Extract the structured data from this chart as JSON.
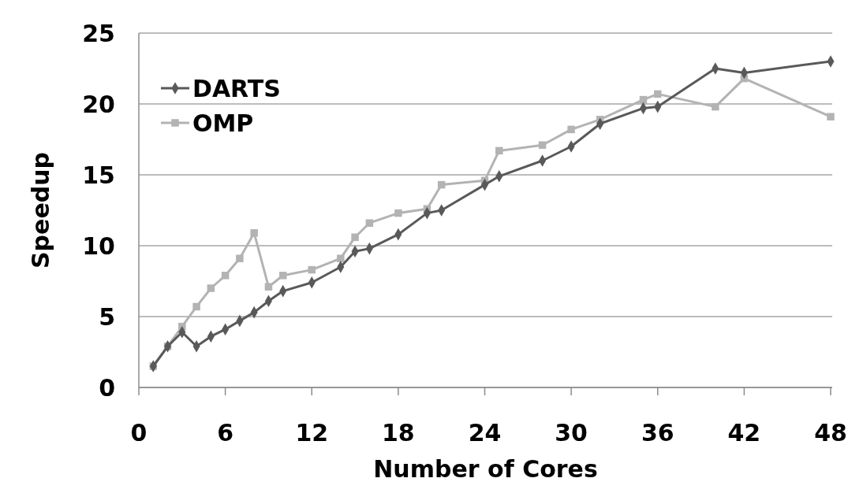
{
  "chart_data": {
    "type": "line",
    "xlabel": "Number of Cores",
    "ylabel": "Speedup",
    "xlim": [
      0,
      48
    ],
    "xticks": [
      0,
      6,
      12,
      18,
      24,
      30,
      36,
      42,
      48
    ],
    "ylim": [
      0,
      25
    ],
    "yticks": [
      0,
      5,
      10,
      15,
      20,
      25
    ],
    "grid": "y",
    "legend": "top left",
    "line_style": "solid",
    "x": [
      1,
      2,
      3,
      4,
      5,
      6,
      7,
      8,
      9,
      10,
      12,
      14,
      15,
      16,
      18,
      20,
      21,
      24,
      25,
      28,
      30,
      32,
      35,
      36,
      40,
      42,
      48
    ],
    "series": [
      {
        "name": "DARTS",
        "color": "#595959",
        "marker": "diamond",
        "values": [
          1.5,
          2.9,
          3.9,
          2.9,
          3.6,
          4.1,
          4.7,
          5.3,
          6.1,
          6.8,
          7.4,
          8.5,
          9.6,
          9.8,
          10.8,
          12.3,
          12.5,
          14.3,
          14.9,
          16,
          17,
          18.6,
          19.7,
          19.8,
          22.5,
          22.2,
          23
        ]
      },
      {
        "name": "OMP",
        "color": "#b3b3b3",
        "marker": "square",
        "values": [
          1.5,
          2.9,
          4.3,
          5.7,
          7,
          7.9,
          9.1,
          10.9,
          7.1,
          7.9,
          8.3,
          9.1,
          10.6,
          11.6,
          12.3,
          12.6,
          14.3,
          14.6,
          16.7,
          17.1,
          18.2,
          18.9,
          20.3,
          20.7,
          19.8,
          21.8,
          19.1
        ]
      }
    ]
  }
}
